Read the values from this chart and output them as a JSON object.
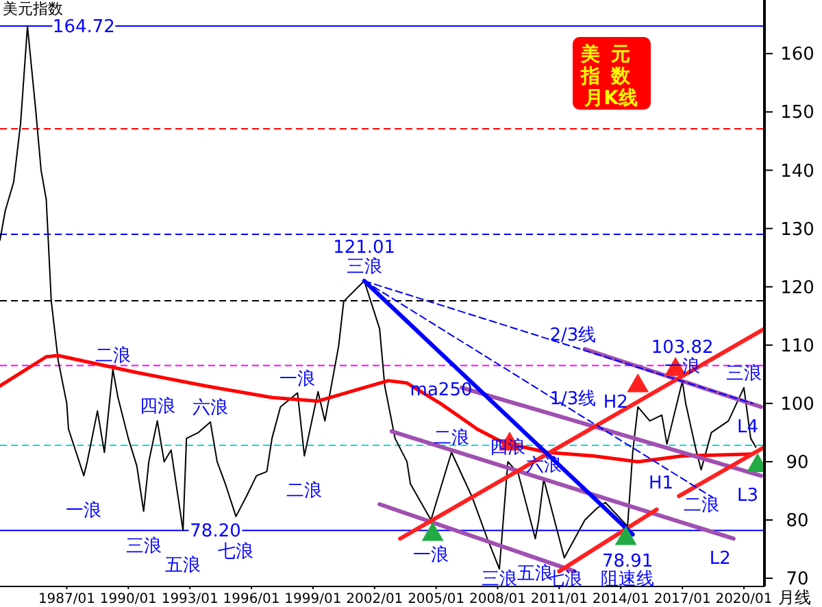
{
  "chart_data": {
    "type": "line",
    "title": "美元指数",
    "subtitle": "美元指数月K线",
    "xlim": [
      "1983-10",
      "2021-01"
    ],
    "ylim": [
      68.6,
      169.2
    ],
    "xticks": [
      {
        "value": "1987-01",
        "label": "1987/01"
      },
      {
        "value": "1990-01",
        "label": "1990/01"
      },
      {
        "value": "1993-01",
        "label": "1993/01"
      },
      {
        "value": "1996-01",
        "label": "1996/01"
      },
      {
        "value": "1999-01",
        "label": "1999/01"
      },
      {
        "value": "2002-01",
        "label": "2002/01"
      },
      {
        "value": "2005-01",
        "label": "2005/01"
      },
      {
        "value": "2008-01",
        "label": "2008/01"
      },
      {
        "value": "2011-01",
        "label": "2011/01"
      },
      {
        "value": "2014-01",
        "label": "2014/01"
      },
      {
        "value": "2017-01",
        "label": "2017/01"
      },
      {
        "value": "2020-01",
        "label": "2020/01"
      }
    ],
    "yticks": [
      70,
      80,
      90,
      100,
      110,
      120,
      130,
      140,
      150,
      160
    ],
    "series": [
      {
        "color": "#000000",
        "x": [
          "1983-10",
          "1984-01",
          "1984-06",
          "1984-10",
          "1985-02",
          "1985-07",
          "1985-10",
          "1986-01",
          "1986-04",
          "1986-08",
          "1987-01",
          "1987-02",
          "1987-11",
          "1988-01",
          "1988-07",
          "1988-11",
          "1989-04",
          "1989-07",
          "1990-01",
          "1990-06",
          "1990-10",
          "1991-01",
          "1991-06",
          "1991-10",
          "1992-02",
          "1992-09",
          "1992-11",
          "1993-06",
          "1994-01",
          "1994-05",
          "1994-10",
          "1995-04",
          "1995-10",
          "1996-04",
          "1996-10",
          "1997-01",
          "1997-06",
          "1998-04",
          "1998-08",
          "1999-04",
          "1999-08",
          "2000-04",
          "2000-07",
          "2001-07",
          "2002-04",
          "2002-07",
          "2003-01",
          "2003-08",
          "2003-10",
          "2004-10",
          "2005-10",
          "2006-10",
          "2007-07",
          "2008-02",
          "2008-07",
          "2009-01",
          "2009-11",
          "2010-01",
          "2010-04",
          "2011-04",
          "2012-04",
          "2012-11",
          "2013-04",
          "2014-05",
          "2014-08",
          "2014-11",
          "2015-06",
          "2016-01",
          "2016-04",
          "2017-01",
          "2017-03",
          "2017-09",
          "2017-12",
          "2018-06",
          "2019-04",
          "2020-01",
          "2020-05",
          "2020-08"
        ],
        "values": [
          128,
          133,
          138,
          148,
          164.72,
          150,
          140,
          135,
          117.5,
          107.4,
          100,
          95.6,
          87.6,
          90,
          98.7,
          91.6,
          105.8,
          101,
          94,
          89.3,
          81.5,
          90,
          97,
          90,
          92,
          78.2,
          94,
          95,
          96.8,
          90,
          86,
          80.6,
          84,
          87.6,
          88.3,
          94,
          99.4,
          101.8,
          91,
          102,
          97,
          109.8,
          117.5,
          121.01,
          112.8,
          103,
          94,
          90,
          86.2,
          80,
          91.6,
          84,
          76.8,
          71.6,
          90,
          88,
          76.8,
          80,
          87,
          73.5,
          80,
          82,
          83,
          78.91,
          91.6,
          99.4,
          97,
          98,
          93,
          103.82,
          100,
          92,
          88.6,
          95,
          97,
          102.7,
          94,
          92.5
        ]
      },
      {
        "color": "#ff0000",
        "x": [
          "1983-10",
          "1986-01",
          "1986-08",
          "1990-06",
          "1993-10",
          "1997-01",
          "1999-04",
          "2002-09",
          "2003-08",
          "2005-04",
          "2007-01",
          "2008-04",
          "2010-06",
          "2012-09",
          "2014-11",
          "2017-01",
          "2020-06"
        ],
        "values": [
          103,
          108,
          108.2,
          105.3,
          103,
          101,
          100.4,
          103.9,
          103.5,
          99.9,
          95.6,
          93.3,
          91.6,
          91,
          90,
          91,
          91.3
        ]
      },
      {
        "color": "#a050b0",
        "x": [
          "2012-04",
          "2020-11"
        ],
        "values": [
          109.3,
          99.4
        ]
      },
      {
        "color": "#a050b0",
        "x": [
          "2006-04",
          "2020-11"
        ],
        "values": [
          102.7,
          87.6
        ]
      },
      {
        "color": "#a050b0",
        "x": [
          "2002-11",
          "2019-07"
        ],
        "values": [
          95.2,
          76.8
        ]
      },
      {
        "color": "#a050b0",
        "x": [
          "2002-04",
          "2011-10"
        ],
        "values": [
          82.7,
          71.2
        ]
      },
      {
        "color": "#ff2020",
        "x": [
          "2003-04",
          "2021-01"
        ],
        "values": [
          76.8,
          112.8
        ]
      },
      {
        "color": "#ff2020",
        "x": [
          "2011-01",
          "2015-10"
        ],
        "values": [
          71.2,
          81.8
        ]
      },
      {
        "color": "#ff2020",
        "x": [
          "2016-11",
          "2021-01"
        ],
        "values": [
          84.1,
          92.5
        ]
      },
      {
        "color": "#0000ff",
        "x": [
          "2001-07",
          "2014-08"
        ],
        "values": [
          121.01,
          77.5
        ]
      },
      {
        "color": "#0000ff",
        "line_style": "dashed",
        "x": [
          "2001-07",
          "2020-06"
        ],
        "values": [
          121.01,
          100
        ]
      },
      {
        "color": "#0000ff",
        "line_style": "dashed",
        "x": [
          "2001-07",
          "2018-06"
        ],
        "values": [
          121.01,
          84
        ]
      },
      {
        "type": "scatter",
        "marker": "triangle",
        "color": "#ff2020",
        "x": [
          "2008-08",
          "2014-11",
          "2016-09"
        ],
        "values": [
          93,
          103,
          105.8
        ]
      },
      {
        "type": "scatter",
        "marker": "triangle",
        "color": "#22aa44",
        "x": [
          "2004-11",
          "2014-04",
          "2020-09"
        ],
        "values": [
          77.5,
          76.8,
          89.3
        ]
      }
    ],
    "ref_lines": [
      {
        "axis": "y",
        "value": 164.72,
        "color": "#0000ff",
        "line_style": "solid"
      },
      {
        "axis": "y",
        "value": 78.2,
        "color": "#0000ff",
        "line_style": "solid"
      },
      {
        "axis": "y",
        "value": 147.1,
        "color": "#ff0000",
        "line_style": "dashed"
      },
      {
        "axis": "y",
        "value": 129,
        "color": "#0000ff",
        "line_style": "dashed"
      },
      {
        "axis": "y",
        "value": 117.6,
        "color": "#000000",
        "line_style": "dashed"
      },
      {
        "axis": "y",
        "value": 106.5,
        "color": "#ff00ff",
        "line_style": "dashed"
      },
      {
        "axis": "y",
        "value": 92.8,
        "color": "#00e0e0",
        "line_style": "dashed"
      }
    ],
    "annotations": [
      {
        "text": "164.72",
        "x": "1987-11",
        "y": 164.72
      },
      {
        "text": "三浪",
        "x": "2001-07",
        "y": 121.01
      },
      {
        "text": "121.01",
        "x": "2001-07",
        "y": 121.01
      },
      {
        "text": "78.20",
        "x": "1994-04",
        "y": 78.2
      },
      {
        "text": "78.91",
        "x": "2014-05",
        "y": 78.91
      },
      {
        "text": "阻速线",
        "x": "2014-05",
        "y": 78.91
      },
      {
        "text": "一浪",
        "x": "2017-01",
        "y": 103.82
      },
      {
        "text": "103.82",
        "x": "2017-01",
        "y": 103.82
      },
      {
        "text": "一浪",
        "x": "1987-11",
        "y": 87.6
      },
      {
        "text": "二浪",
        "x": "1989-04",
        "y": 105.8
      },
      {
        "text": "三浪",
        "x": "1990-10",
        "y": 81.5
      },
      {
        "text": "四浪",
        "x": "1991-06",
        "y": 97
      },
      {
        "text": "五浪",
        "x": "1992-09",
        "y": 78.2
      },
      {
        "text": "六浪",
        "x": "1994-01",
        "y": 96.8
      },
      {
        "text": "七浪",
        "x": "1995-04",
        "y": 80.6
      },
      {
        "text": "一浪",
        "x": "1998-04",
        "y": 101.8
      },
      {
        "text": "二浪",
        "x": "1998-08",
        "y": 91
      },
      {
        "text": "ma250",
        "x": "2005-04",
        "y": 99.9
      },
      {
        "text": "一浪",
        "x": "2004-10",
        "y": 80
      },
      {
        "text": "二浪",
        "x": "2005-10",
        "y": 91.6
      },
      {
        "text": "三浪",
        "x": "2008-02",
        "y": 71.6
      },
      {
        "text": "四浪",
        "x": "2008-07",
        "y": 90
      },
      {
        "text": "五浪",
        "x": "2009-11",
        "y": 76.8
      },
      {
        "text": "六浪",
        "x": "2010-04",
        "y": 87
      },
      {
        "text": "七浪",
        "x": "2011-04",
        "y": 73.5
      },
      {
        "text": "1/3线",
        "x": "2011-09",
        "y": 98.8
      },
      {
        "text": "2/3线",
        "x": "2011-09",
        "y": 109.7
      },
      {
        "text": "H2",
        "x": "2013-10",
        "y": 98.2
      },
      {
        "text": "H1",
        "x": "2016-11",
        "y": 84.1
      },
      {
        "text": "L2",
        "x": "2019-07",
        "y": 76.8
      },
      {
        "text": "L3",
        "x": "2020-11",
        "y": 87.6
      },
      {
        "text": "L4",
        "x": "2020-11",
        "y": 99.4
      },
      {
        "text": "二浪",
        "x": "2017-12",
        "y": 88.6
      },
      {
        "text": "三浪",
        "x": "2020-01",
        "y": 102.7
      },
      "月线"
    ]
  }
}
